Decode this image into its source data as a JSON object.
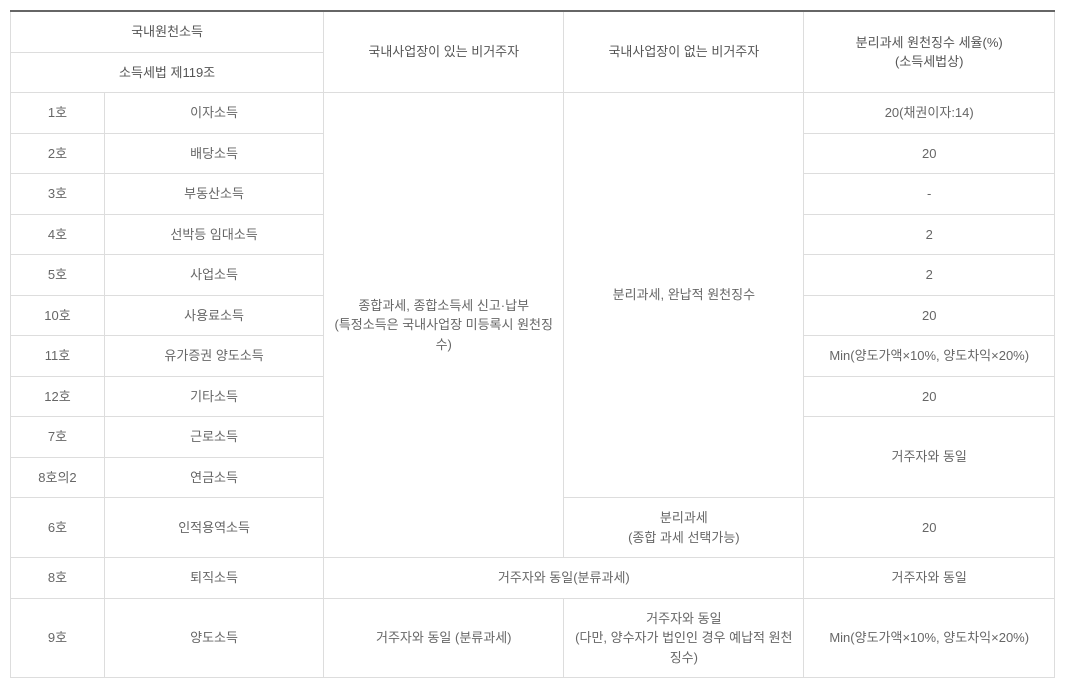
{
  "headers": {
    "group_top": "국내원천소득",
    "group_sub": "소득세법 제119조",
    "col_with": "국내사업장이 있는 비거주자",
    "col_without": "국내사업장이 없는 비거주자",
    "col_rate": "분리과세 원천징수 세율(%)\n(소득세법상)"
  },
  "merged": {
    "with_main": "종합과세, 종합소득세 신고·납부\n(특정소득은 국내사업장 미등록시 원천징수)",
    "without_main": "분리과세, 완납적 원천징수",
    "without_personal": "분리과세\n(종합 과세 선택가능)",
    "rate_sameres": "거주자와 동일",
    "row_retire_merged": "거주자와 동일(분류과세)",
    "row_transfer_with": "거주자와 동일 (분류과세)",
    "row_transfer_without": "거주자와 동일\n(다만, 양수자가 법인인 경우 예납적 원천징수)"
  },
  "rows": [
    {
      "num": "1호",
      "type": "이자소득",
      "rate": "20(채권이자:14)"
    },
    {
      "num": "2호",
      "type": "배당소득",
      "rate": "20"
    },
    {
      "num": "3호",
      "type": "부동산소득",
      "rate": "-"
    },
    {
      "num": "4호",
      "type": "선박등 임대소득",
      "rate": "2"
    },
    {
      "num": "5호",
      "type": "사업소득",
      "rate": "2"
    },
    {
      "num": "10호",
      "type": "사용료소득",
      "rate": "20"
    },
    {
      "num": "11호",
      "type": "유가증권 양도소득",
      "rate": "Min(양도가액×10%, 양도차익×20%)"
    },
    {
      "num": "12호",
      "type": "기타소득",
      "rate": "20"
    },
    {
      "num": "7호",
      "type": "근로소득"
    },
    {
      "num": "8호의2",
      "type": "연금소득"
    },
    {
      "num": "6호",
      "type": "인적용역소득",
      "rate": "20"
    },
    {
      "num": "8호",
      "type": "퇴직소득",
      "rate": "거주자와 동일"
    },
    {
      "num": "9호",
      "type": "양도소득",
      "rate": "Min(양도가액×10%, 양도차익×20%)"
    }
  ]
}
